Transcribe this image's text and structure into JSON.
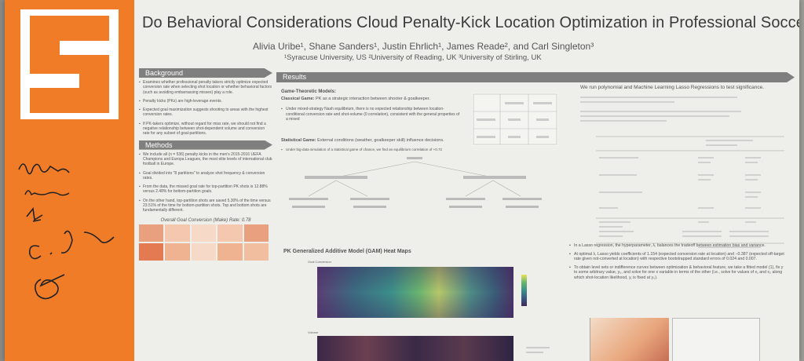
{
  "title": "Do Behavioral Considerations Cloud Penalty-Kick Location Optimization in Professional Soccer?",
  "authors": "Alivia Uribe¹, Shane Sanders¹, Justin Ehrlich¹, James Reade², and Carl Singleton³",
  "affiliations": "¹Syracuse University, US ²University of Reading, UK ³University of Stirling, UK",
  "background": {
    "heading": "Background",
    "bullets": [
      "Examines whether professional penalty takers strictly optimize expected conversion rate when selecting shot location or whether behavioral factors (such as avoiding embarrassing misses) play a role.",
      "Penalty kicks (PKs) are high-leverage events.",
      "Expected goal maximization suggests shooting to areas with the highest conversion rates.",
      "If PK-takers optimize, without regard for miss rate, we should not find a negative relationship between shot-dependent volume and conversion rate for any subset of goal-partitions."
    ]
  },
  "methods": {
    "heading": "Methods",
    "bullets": [
      "We include all (n = 536) penalty kicks in the men's 2015-2016 UEFA Champions and Europa Leagues, the most elite levels of international club football in Europe.",
      "Goal divided into \"8 partitions\" to analyze shot frequency & conversion rates.",
      "From the data, the missed goal rate for top-partition PK shots is 12.88% versus 2.48% for bottom-partition goals.",
      "On the other hand, top-partition shots are saved 5.30% of the time versus 23.51% of the time for bottom-partition shots. Top and bottom shots are fundamentally different."
    ],
    "chart_title": "Overall Goal Conversion (Make) Rate: 0.78"
  },
  "results": {
    "heading": "Results",
    "game_theoretic": "Game-Theoretic Models:",
    "classical_label": "Classical Game:",
    "classical_text": "PK as a strategic interaction between shooter & goalkeeper.",
    "classical_bullet": "Under mixed-strategy Nash equilibrium, there is no expected relationship between location-conditional conversion rate and shot-volume (0 correlation), consistent with the general properties of a mixed",
    "statistical_label": "Statistical Game:",
    "statistical_text": "External conditions (weather, goalkeeper skill) influence decisions.",
    "statistical_bullet": "Under big-data simulation of a statistical game of chance, we find an equilibrium correlation of +0.72",
    "gam_title": "PK Generalized Additive Model (GAM) Heat Maps",
    "gam_label": "Goal Conversion",
    "volume_label": "Volume"
  },
  "right": {
    "heading": "We run polynomial and Machine Learning Lasso Regressions to test significance.",
    "bullets": [
      "In a Lasso regression, the hyperparameter, λ, balances the tradeoff between estimation bias and variance.",
      "At optimal λ, Lasso yields coefficients of 1.154 (expected conversion rate at location) and −0.387 (expected off-target rate given not-converted at location) with respective bootstrapped standard errors of 0.024 and 0.007.",
      "To obtain level sets or indifference curves between optimization & behavioral feature, we take a fitted model (1), fix y to some arbitrary value, y₀, and solve for one x variable in terms of the other (i.e., solve for values of x₁ and x₂ along which shot-location likelihood, y, is fixed at y₀)."
    ]
  },
  "colors": {
    "syracuse_orange": "#f07c28",
    "section_gray": "#7f7f7f"
  }
}
